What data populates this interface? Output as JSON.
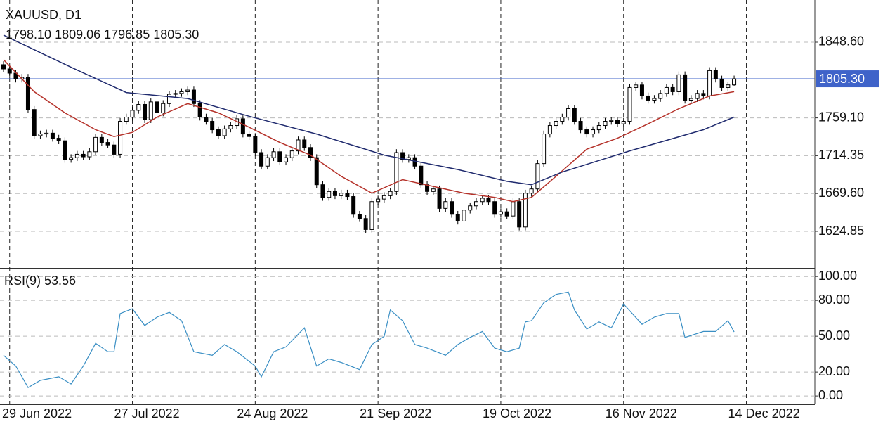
{
  "chart_data": [
    {
      "type": "candlestick",
      "title": "XAUUSD, D1",
      "subtitle": "1798.10 1809.06 1796.85 1805.30",
      "categories": [
        null,
        "29 Jun 2022",
        null,
        null,
        null,
        null,
        null,
        null,
        null,
        null,
        null,
        null,
        null,
        null,
        null,
        null,
        null,
        null,
        null,
        null,
        null,
        "27 Jul 2022",
        null,
        null,
        null,
        null,
        null,
        null,
        null,
        null,
        null,
        null,
        null,
        null,
        null,
        null,
        null,
        null,
        null,
        null,
        null,
        "24 Aug 2022",
        null,
        null,
        null,
        null,
        null,
        null,
        null,
        null,
        null,
        null,
        null,
        null,
        null,
        null,
        null,
        null,
        null,
        null,
        null,
        "21 Sep 2022",
        null,
        null,
        null,
        null,
        null,
        null,
        null,
        null,
        null,
        null,
        null,
        null,
        null,
        null,
        null,
        null,
        null,
        null,
        null,
        "19 Oct 2022",
        null,
        null,
        null,
        null,
        null,
        null,
        null,
        null,
        null,
        null,
        null,
        null,
        null,
        null,
        null,
        null,
        null,
        null,
        null,
        "16 Nov 2022",
        null,
        null,
        null,
        null,
        null,
        null,
        null,
        null,
        null,
        null,
        null,
        null,
        null,
        null,
        null,
        null,
        null,
        null,
        null,
        "14 Dec 2022"
      ],
      "open": [
        1822,
        1817,
        1812,
        1805,
        1807,
        1769,
        1738,
        1740,
        1741,
        1735,
        1732,
        1710,
        1712,
        1716,
        1713,
        1719,
        1736,
        1730,
        1727,
        1716,
        1755,
        1760,
        1768,
        1775,
        1757,
        1778,
        1765,
        1776,
        1787,
        1788,
        1790,
        1792,
        1776,
        1760,
        1755,
        1745,
        1738,
        1746,
        1750,
        1758,
        1740,
        1737,
        1718,
        1702,
        1712,
        1719,
        1707,
        1712,
        1720,
        1733,
        1724,
        1712,
        1680,
        1665,
        1672,
        1667,
        1670,
        1666,
        1645,
        1640,
        1627,
        1660,
        1663,
        1667,
        1672,
        1718,
        1710,
        1712,
        1702,
        1680,
        1672,
        1675,
        1652,
        1660,
        1645,
        1637,
        1650,
        1655,
        1660,
        1664,
        1660,
        1645,
        1648,
        1643,
        1660,
        1630,
        1670,
        1675,
        1705,
        1740,
        1750,
        1755,
        1760,
        1770,
        1755,
        1745,
        1740,
        1745,
        1750,
        1755,
        1756,
        1752,
        1755,
        1795,
        1798,
        1785,
        1780,
        1782,
        1788,
        1795,
        1790,
        1810,
        1780,
        1782,
        1788,
        1785,
        1815,
        1805,
        1795,
        1798.1,
        null,
        null
      ],
      "high": [
        1826,
        1821,
        1816,
        1811,
        1811,
        1773,
        1744,
        1745,
        1745,
        1739,
        1736,
        1716,
        1720,
        1720,
        1723,
        1740,
        1740,
        1734,
        1731,
        1759,
        1764,
        1772,
        1779,
        1779,
        1782,
        1782,
        1780,
        1791,
        1792,
        1794,
        1796,
        1796,
        1780,
        1764,
        1759,
        1749,
        1750,
        1754,
        1762,
        1762,
        1744,
        1741,
        1722,
        1716,
        1723,
        1723,
        1716,
        1724,
        1737,
        1737,
        1728,
        1716,
        1684,
        1676,
        1676,
        1674,
        1674,
        1670,
        1649,
        1644,
        1664,
        1667,
        1671,
        1676,
        1722,
        1722,
        1716,
        1716,
        1706,
        1684,
        1679,
        1679,
        1664,
        1664,
        1649,
        1654,
        1659,
        1664,
        1668,
        1668,
        1664,
        1652,
        1652,
        1664,
        1664,
        1674,
        1679,
        1709,
        1744,
        1754,
        1759,
        1764,
        1774,
        1774,
        1759,
        1749,
        1749,
        1754,
        1759,
        1760,
        1760,
        1759,
        1799,
        1802,
        1802,
        1789,
        1786,
        1792,
        1799,
        1799,
        1814,
        1814,
        1786,
        1792,
        1792,
        1819,
        1819,
        1809,
        1802,
        1809.06,
        null,
        null
      ],
      "low": [
        1813,
        1808,
        1801,
        1801,
        1765,
        1734,
        1734,
        1736,
        1731,
        1728,
        1706,
        1706,
        1708,
        1709,
        1709,
        1715,
        1726,
        1723,
        1712,
        1712,
        1751,
        1756,
        1764,
        1753,
        1753,
        1761,
        1761,
        1772,
        1783,
        1784,
        1786,
        1772,
        1756,
        1751,
        1741,
        1734,
        1734,
        1742,
        1746,
        1736,
        1733,
        1714,
        1698,
        1698,
        1708,
        1703,
        1703,
        1708,
        1716,
        1720,
        1708,
        1676,
        1661,
        1661,
        1663,
        1663,
        1662,
        1641,
        1636,
        1623,
        1623,
        1656,
        1659,
        1663,
        1668,
        1706,
        1706,
        1698,
        1676,
        1668,
        1668,
        1648,
        1648,
        1641,
        1633,
        1633,
        1646,
        1651,
        1656,
        1656,
        1641,
        1641,
        1639,
        1639,
        1626,
        1626,
        1666,
        1671,
        1701,
        1736,
        1746,
        1751,
        1756,
        1751,
        1741,
        1736,
        1736,
        1741,
        1746,
        1751,
        1748,
        1748,
        1751,
        1791,
        1781,
        1776,
        1776,
        1778,
        1784,
        1786,
        1786,
        1776,
        1776,
        1778,
        1781,
        1781,
        1801,
        1791,
        1791,
        1796.85,
        null,
        null
      ],
      "close": [
        1817,
        1812,
        1805,
        1807,
        1769,
        1738,
        1740,
        1741,
        1735,
        1732,
        1710,
        1712,
        1716,
        1713,
        1719,
        1736,
        1730,
        1727,
        1716,
        1755,
        1760,
        1768,
        1775,
        1757,
        1778,
        1765,
        1776,
        1787,
        1788,
        1790,
        1792,
        1776,
        1760,
        1755,
        1745,
        1738,
        1746,
        1750,
        1758,
        1740,
        1737,
        1718,
        1702,
        1712,
        1719,
        1707,
        1712,
        1720,
        1733,
        1724,
        1712,
        1680,
        1665,
        1672,
        1667,
        1670,
        1666,
        1645,
        1640,
        1627,
        1660,
        1663,
        1667,
        1672,
        1718,
        1710,
        1712,
        1702,
        1680,
        1672,
        1675,
        1652,
        1660,
        1645,
        1637,
        1650,
        1655,
        1660,
        1664,
        1660,
        1645,
        1648,
        1643,
        1660,
        1630,
        1670,
        1675,
        1705,
        1740,
        1750,
        1755,
        1760,
        1770,
        1755,
        1745,
        1740,
        1745,
        1750,
        1755,
        1756,
        1752,
        1755,
        1795,
        1798,
        1785,
        1780,
        1782,
        1788,
        1795,
        1790,
        1810,
        1780,
        1782,
        1788,
        1785,
        1815,
        1805,
        1795,
        1798.1,
        1805.3,
        null,
        null
      ],
      "overlays": [
        {
          "color": "#b5322a",
          "x": [
            0,
            5,
            10,
            15,
            18,
            21,
            25,
            30,
            35,
            40,
            45,
            50,
            55,
            60,
            65,
            70,
            75,
            80,
            83,
            86,
            90,
            95,
            100,
            105,
            110,
            115,
            119
          ],
          "values": [
            1828,
            1790,
            1765,
            1745,
            1737,
            1742,
            1760,
            1776,
            1765,
            1748,
            1730,
            1715,
            1690,
            1670,
            1686,
            1678,
            1670,
            1665,
            1660,
            1665,
            1690,
            1722,
            1735,
            1752,
            1770,
            1785,
            1790
          ]
        },
        {
          "color": "#1f2a6e",
          "x": [
            0,
            11,
            20,
            30,
            40,
            51,
            62,
            74,
            82,
            86,
            91,
            102,
            114,
            119
          ],
          "values": [
            1857,
            1819,
            1789,
            1782,
            1761,
            1740,
            1715,
            1698,
            1684,
            1680,
            1695,
            1720,
            1745,
            1760
          ]
        }
      ],
      "price_line": {
        "value": 1805.3,
        "label": "1805.30",
        "color": "#3f63c9"
      },
      "ylim": [
        1581.6,
        1898.5
      ],
      "yticks": [
        {
          "value": 1624.85,
          "label": "1624.85"
        },
        {
          "value": 1669.6,
          "label": "1669.60"
        },
        {
          "value": 1714.35,
          "label": "1714.35"
        },
        {
          "value": 1759.1,
          "label": "1759.10"
        },
        {
          "value": 1848.6,
          "label": "1848.60"
        }
      ],
      "grid": true
    },
    {
      "type": "line",
      "title": "RSI(9) 53.56",
      "color": "#3a8fc4",
      "x": [
        0,
        2,
        4,
        6,
        9,
        11,
        13,
        15,
        17,
        18,
        19,
        21,
        23,
        25,
        27,
        29,
        31,
        34,
        36,
        38,
        41,
        42,
        44,
        46,
        49,
        51,
        53,
        55,
        58,
        60,
        62,
        63,
        65,
        67,
        69,
        72,
        74,
        76,
        78,
        80,
        82,
        84,
        85,
        86,
        88,
        90,
        92,
        93,
        95,
        97,
        99,
        101,
        104,
        106,
        108,
        110,
        111,
        114,
        116,
        118,
        119
      ],
      "values": [
        34,
        25,
        7,
        13,
        16,
        10,
        25,
        44,
        37,
        37,
        69,
        73,
        59,
        66,
        70,
        63,
        37,
        34,
        43,
        37,
        25,
        16,
        37,
        41,
        57,
        25,
        31,
        28,
        22,
        43,
        50,
        72,
        63,
        43,
        40,
        34,
        43,
        49,
        54,
        40,
        37,
        40,
        62,
        63,
        78,
        85,
        87,
        72,
        56,
        62,
        57,
        77,
        60,
        66,
        69,
        69,
        49,
        54,
        54,
        63,
        53.56
      ],
      "ylim": [
        -7,
        106
      ],
      "yticks": [
        {
          "value": 0,
          "label": "0.00"
        },
        {
          "value": 20,
          "label": "20.00"
        },
        {
          "value": 50,
          "label": "50.00"
        },
        {
          "value": 80,
          "label": "80.00"
        },
        {
          "value": 100,
          "label": "100.00"
        }
      ],
      "grid": true
    }
  ]
}
